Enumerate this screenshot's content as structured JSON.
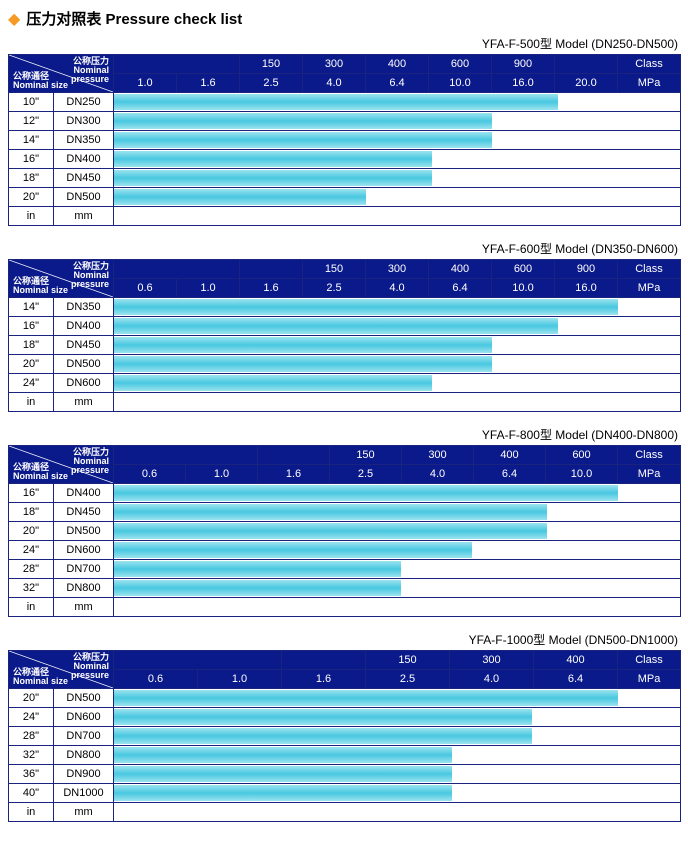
{
  "page": {
    "title": "压力对照表 Pressure check list",
    "diag_top": "公称压力<br>Nominal<br>pressure",
    "diag_bot": "公称通径<br>Nominal size",
    "header_bg": "#0b1a8a",
    "header_fg": "#ffffff",
    "border_color": "#1a237e",
    "bar_gradient": [
      "#9be3ee",
      "#48c8e0",
      "#9be3ee"
    ],
    "footer_in": "in",
    "footer_mm": "mm"
  },
  "tables": [
    {
      "model": "YFA-F-500型   Model (DN250-DN500)",
      "left_col_w": 45,
      "mm_col_w": 60,
      "data_col_w": 63,
      "class_col_w": 63,
      "class_top": [
        "",
        "150",
        "300",
        "400",
        "600",
        "900",
        ""
      ],
      "mpa_row": [
        "1.0",
        "1.6",
        "2.5",
        "4.0",
        "6.4",
        "10.0",
        "16.0",
        "20.0"
      ],
      "class_label": "Class",
      "mpa_label": "MPa",
      "rows": [
        {
          "in": "10\"",
          "mm": "DN250",
          "bar_pct": 88
        },
        {
          "in": "12\"",
          "mm": "DN300",
          "bar_pct": 75
        },
        {
          "in": "14\"",
          "mm": "DN350",
          "bar_pct": 75
        },
        {
          "in": "16\"",
          "mm": "DN400",
          "bar_pct": 63
        },
        {
          "in": "18\"",
          "mm": "DN450",
          "bar_pct": 63
        },
        {
          "in": "20\"",
          "mm": "DN500",
          "bar_pct": 50
        }
      ]
    },
    {
      "model": "YFA-F-600型   Model (DN350-DN600)",
      "left_col_w": 45,
      "mm_col_w": 60,
      "data_col_w": 63,
      "class_col_w": 63,
      "class_top": [
        "",
        "",
        "150",
        "300",
        "400",
        "600",
        "900"
      ],
      "mpa_row": [
        "0.6",
        "1.0",
        "1.6",
        "2.5",
        "4.0",
        "6.4",
        "10.0",
        "16.0"
      ],
      "class_label": "Class",
      "mpa_label": "MPa",
      "rows": [
        {
          "in": "14\"",
          "mm": "DN350",
          "bar_pct": 100
        },
        {
          "in": "16\"",
          "mm": "DN400",
          "bar_pct": 88
        },
        {
          "in": "18\"",
          "mm": "DN450",
          "bar_pct": 75
        },
        {
          "in": "20\"",
          "mm": "DN500",
          "bar_pct": 75
        },
        {
          "in": "24\"",
          "mm": "DN600",
          "bar_pct": 63
        }
      ]
    },
    {
      "model": "YFA-F-800型   Model (DN400-DN800)",
      "left_col_w": 45,
      "mm_col_w": 60,
      "data_col_w": 72,
      "class_col_w": 63,
      "class_top": [
        "",
        "",
        "150",
        "300",
        "400",
        "600"
      ],
      "mpa_row": [
        "0.6",
        "1.0",
        "1.6",
        "2.5",
        "4.0",
        "6.4",
        "10.0"
      ],
      "class_label": "Class",
      "mpa_label": "MPa",
      "rows": [
        {
          "in": "16\"",
          "mm": "DN400",
          "bar_pct": 100
        },
        {
          "in": "18\"",
          "mm": "DN450",
          "bar_pct": 86
        },
        {
          "in": "20\"",
          "mm": "DN500",
          "bar_pct": 86
        },
        {
          "in": "24\"",
          "mm": "DN600",
          "bar_pct": 71
        },
        {
          "in": "28\"",
          "mm": "DN700",
          "bar_pct": 57
        },
        {
          "in": "32\"",
          "mm": "DN800",
          "bar_pct": 57
        }
      ]
    },
    {
      "model": "YFA-F-1000型   Model (DN500-DN1000)",
      "left_col_w": 45,
      "mm_col_w": 60,
      "data_col_w": 84,
      "class_col_w": 63,
      "class_top": [
        "",
        "",
        "150",
        "300",
        "400"
      ],
      "mpa_row": [
        "0.6",
        "1.0",
        "1.6",
        "2.5",
        "4.0",
        "6.4"
      ],
      "class_label": "Class",
      "mpa_label": "MPa",
      "rows": [
        {
          "in": "20\"",
          "mm": "DN500",
          "bar_pct": 100
        },
        {
          "in": "24\"",
          "mm": "DN600",
          "bar_pct": 83
        },
        {
          "in": "28\"",
          "mm": "DN700",
          "bar_pct": 83
        },
        {
          "in": "32\"",
          "mm": "DN800",
          "bar_pct": 67
        },
        {
          "in": "36\"",
          "mm": "DN900",
          "bar_pct": 67
        },
        {
          "in": "40\"",
          "mm": "DN1000",
          "bar_pct": 67
        }
      ]
    }
  ]
}
